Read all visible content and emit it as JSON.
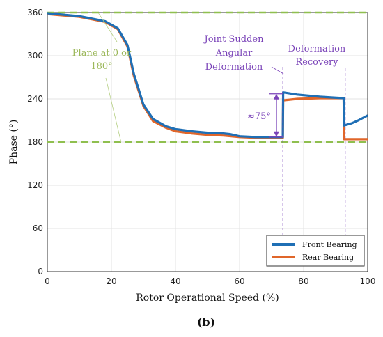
{
  "chart_data": {
    "type": "line",
    "xlabel": "Rotor Operational Speed (%)",
    "ylabel": "Phase (°)",
    "xlim": [
      0,
      100
    ],
    "ylim": [
      0,
      360
    ],
    "xticks": [
      0,
      20,
      40,
      60,
      80,
      100
    ],
    "yticks": [
      0,
      60,
      120,
      180,
      240,
      300,
      360
    ],
    "grid": true,
    "legend": "bottom-right",
    "panel_label": "(b)",
    "series": [
      {
        "name": "Front Bearing",
        "color": "#1f6fb5",
        "x": [
          0,
          10,
          18,
          22,
          25,
          27,
          30,
          33,
          37,
          40,
          45,
          50,
          55,
          57,
          60,
          65,
          70,
          73.5,
          73.6,
          78,
          85,
          92.5,
          92.6,
          95,
          97,
          100
        ],
        "y": [
          359,
          355,
          348,
          338,
          315,
          275,
          232,
          212,
          202,
          198,
          195,
          193,
          192,
          191,
          188,
          187,
          187,
          187,
          249,
          246,
          243,
          241,
          203,
          206,
          210,
          217
        ]
      },
      {
        "name": "Rear Bearing",
        "color": "#e0662a",
        "x": [
          0,
          10,
          18,
          22,
          25,
          27,
          30,
          33,
          37,
          40,
          45,
          50,
          55,
          60,
          65,
          70,
          73.5,
          73.6,
          78,
          85,
          92.5,
          92.6,
          95,
          100
        ],
        "y": [
          358,
          354,
          347,
          337,
          313,
          272,
          230,
          209,
          200,
          195,
          192,
          190,
          189,
          187,
          186,
          186,
          186,
          238,
          240,
          241,
          241,
          184,
          184,
          184
        ]
      }
    ],
    "reference_lines": [
      {
        "y": 360,
        "color": "#8fbf4f"
      },
      {
        "y": 180,
        "color": "#8fbf4f"
      }
    ],
    "annotations": {
      "plane_lines": [
        "Plane at 0 or",
        "180°"
      ],
      "joint_lines": [
        "Joint Sudden",
        "Angular",
        "Deformation"
      ],
      "recovery_lines": [
        "Deformation",
        "Recovery"
      ],
      "delta": "≈75°"
    }
  }
}
